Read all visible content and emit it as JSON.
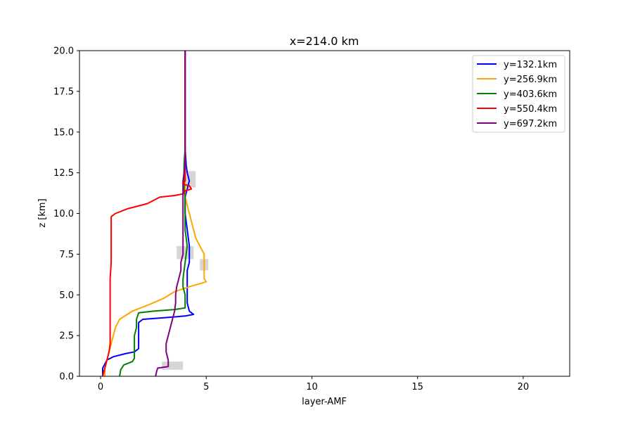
{
  "chart_data": {
    "type": "line",
    "title": "x=214.0 km",
    "xlabel": "layer-AMF",
    "ylabel": "z [km]",
    "xlim": [
      -1,
      22.2
    ],
    "ylim": [
      0,
      20
    ],
    "xticks": [
      0,
      5,
      10,
      15,
      20
    ],
    "yticks": [
      0.0,
      2.5,
      5.0,
      7.5,
      10.0,
      12.5,
      15.0,
      17.5,
      20.0
    ],
    "xtick_labels": [
      "0",
      "5",
      "10",
      "15",
      "20"
    ],
    "ytick_labels": [
      "0.0",
      "2.5",
      "5.0",
      "7.5",
      "10.0",
      "12.5",
      "15.0",
      "17.5",
      "20.0"
    ],
    "grid": false,
    "legend_position": "top-right",
    "shading_color": "#c8c3c8",
    "series": [
      {
        "name": "y=132.1km",
        "color": "#0000ff",
        "points": [
          [
            0.1,
            0
          ],
          [
            0.1,
            0.5
          ],
          [
            0.3,
            1.0
          ],
          [
            0.6,
            1.2
          ],
          [
            1.2,
            1.4
          ],
          [
            1.6,
            1.5
          ],
          [
            1.8,
            1.7
          ],
          [
            1.8,
            2.0
          ],
          [
            1.8,
            2.5
          ],
          [
            1.8,
            3.3
          ],
          [
            2.0,
            3.5
          ],
          [
            3.0,
            3.6
          ],
          [
            4.0,
            3.7
          ],
          [
            4.4,
            3.8
          ],
          [
            4.2,
            4.0
          ],
          [
            4.1,
            4.5
          ],
          [
            4.1,
            5.0
          ],
          [
            4.1,
            6.0
          ],
          [
            4.1,
            6.5
          ],
          [
            4.2,
            7.0
          ],
          [
            4.2,
            8.0
          ],
          [
            4.1,
            9.0
          ],
          [
            4.0,
            10.0
          ],
          [
            4.0,
            11.0
          ],
          [
            4.1,
            11.5
          ],
          [
            4.2,
            12.0
          ],
          [
            4.1,
            12.5
          ],
          [
            4.05,
            13.0
          ],
          [
            4.0,
            14.0
          ],
          [
            4.0,
            20.0
          ]
        ]
      },
      {
        "name": "y=256.9km",
        "color": "#ffa500",
        "points": [
          [
            0.2,
            0
          ],
          [
            0.2,
            0.5
          ],
          [
            0.3,
            1.0
          ],
          [
            0.4,
            1.5
          ],
          [
            0.5,
            2.0
          ],
          [
            0.6,
            2.5
          ],
          [
            0.7,
            3.0
          ],
          [
            0.9,
            3.5
          ],
          [
            1.5,
            4.0
          ],
          [
            2.3,
            4.4
          ],
          [
            3.0,
            4.8
          ],
          [
            3.5,
            5.2
          ],
          [
            4.2,
            5.5
          ],
          [
            5.0,
            5.8
          ],
          [
            4.9,
            6.0
          ],
          [
            4.9,
            6.5
          ],
          [
            4.9,
            7.0
          ],
          [
            4.9,
            7.5
          ],
          [
            4.7,
            8.0
          ],
          [
            4.5,
            8.5
          ],
          [
            4.4,
            9.0
          ],
          [
            4.3,
            9.5
          ],
          [
            4.2,
            10.0
          ],
          [
            4.1,
            10.5
          ],
          [
            4.0,
            11.0
          ],
          [
            4.0,
            11.5
          ],
          [
            4.0,
            12.0
          ],
          [
            4.0,
            12.5
          ],
          [
            4.0,
            13.0
          ],
          [
            4.0,
            14.0
          ],
          [
            4.0,
            20.0
          ]
        ]
      },
      {
        "name": "y=403.6km",
        "color": "#008000",
        "points": [
          [
            0.9,
            0
          ],
          [
            0.95,
            0.4
          ],
          [
            1.1,
            0.7
          ],
          [
            1.5,
            0.9
          ],
          [
            1.6,
            1.1
          ],
          [
            1.6,
            1.5
          ],
          [
            1.6,
            2.0
          ],
          [
            1.6,
            2.5
          ],
          [
            1.7,
            3.0
          ],
          [
            1.7,
            3.5
          ],
          [
            1.8,
            3.9
          ],
          [
            2.5,
            4.0
          ],
          [
            3.5,
            4.1
          ],
          [
            4.0,
            4.2
          ],
          [
            4.0,
            4.5
          ],
          [
            4.0,
            5.0
          ],
          [
            3.9,
            5.5
          ],
          [
            3.9,
            6.0
          ],
          [
            4.0,
            7.0
          ],
          [
            4.1,
            8.0
          ],
          [
            4.0,
            9.0
          ],
          [
            4.0,
            10.0
          ],
          [
            4.0,
            11.0
          ],
          [
            3.95,
            11.5
          ],
          [
            3.95,
            12.0
          ],
          [
            3.95,
            13.0
          ],
          [
            4.0,
            14.0
          ],
          [
            4.0,
            20.0
          ]
        ]
      },
      {
        "name": "y=550.4km",
        "color": "#ff0000",
        "points": [
          [
            0.1,
            0
          ],
          [
            0.2,
            0.5
          ],
          [
            0.3,
            1.0
          ],
          [
            0.4,
            1.5
          ],
          [
            0.45,
            2.0
          ],
          [
            0.45,
            2.5
          ],
          [
            0.45,
            3.0
          ],
          [
            0.45,
            4.0
          ],
          [
            0.45,
            5.0
          ],
          [
            0.45,
            6.0
          ],
          [
            0.5,
            7.0
          ],
          [
            0.5,
            8.0
          ],
          [
            0.5,
            9.0
          ],
          [
            0.5,
            9.8
          ],
          [
            0.7,
            10.0
          ],
          [
            1.3,
            10.3
          ],
          [
            2.2,
            10.6
          ],
          [
            2.5,
            10.8
          ],
          [
            2.8,
            11.0
          ],
          [
            3.5,
            11.1
          ],
          [
            3.9,
            11.2
          ],
          [
            4.0,
            11.4
          ],
          [
            4.3,
            11.5
          ],
          [
            4.2,
            11.7
          ],
          [
            3.9,
            11.8
          ],
          [
            4.0,
            12.0
          ],
          [
            4.0,
            13.0
          ],
          [
            4.0,
            14.0
          ],
          [
            4.0,
            20.0
          ]
        ]
      },
      {
        "name": "y=697.2km",
        "color": "#800080",
        "points": [
          [
            2.6,
            0
          ],
          [
            2.65,
            0.3
          ],
          [
            2.7,
            0.5
          ],
          [
            3.2,
            0.6
          ],
          [
            3.2,
            1.0
          ],
          [
            3.1,
            1.5
          ],
          [
            3.1,
            2.0
          ],
          [
            3.2,
            2.5
          ],
          [
            3.3,
            3.0
          ],
          [
            3.4,
            3.5
          ],
          [
            3.5,
            4.0
          ],
          [
            3.55,
            4.5
          ],
          [
            3.55,
            5.0
          ],
          [
            3.6,
            5.5
          ],
          [
            3.7,
            6.0
          ],
          [
            3.8,
            6.5
          ],
          [
            3.8,
            7.0
          ],
          [
            3.9,
            7.5
          ],
          [
            3.9,
            8.0
          ],
          [
            3.9,
            9.0
          ],
          [
            3.9,
            10.0
          ],
          [
            3.9,
            11.0
          ],
          [
            3.9,
            12.0
          ],
          [
            4.0,
            13.0
          ],
          [
            4.0,
            14.0
          ],
          [
            4.0,
            20.0
          ]
        ]
      }
    ],
    "bands": [
      {
        "y": [
          0.4,
          0.9
        ],
        "x_left": [
          2.9,
          2.9
        ],
        "x_right": [
          3.9,
          3.9
        ]
      },
      {
        "y": [
          7.2,
          8.0
        ],
        "x_left": [
          3.6,
          3.6
        ],
        "x_right": [
          4.4,
          4.4
        ]
      },
      {
        "y": [
          11.6,
          12.6
        ],
        "x_left": [
          3.9,
          3.9
        ],
        "x_right": [
          4.5,
          4.5
        ]
      },
      {
        "y": [
          6.5,
          7.2
        ],
        "x_left": [
          4.7,
          4.7
        ],
        "x_right": [
          5.1,
          5.1
        ]
      }
    ]
  }
}
